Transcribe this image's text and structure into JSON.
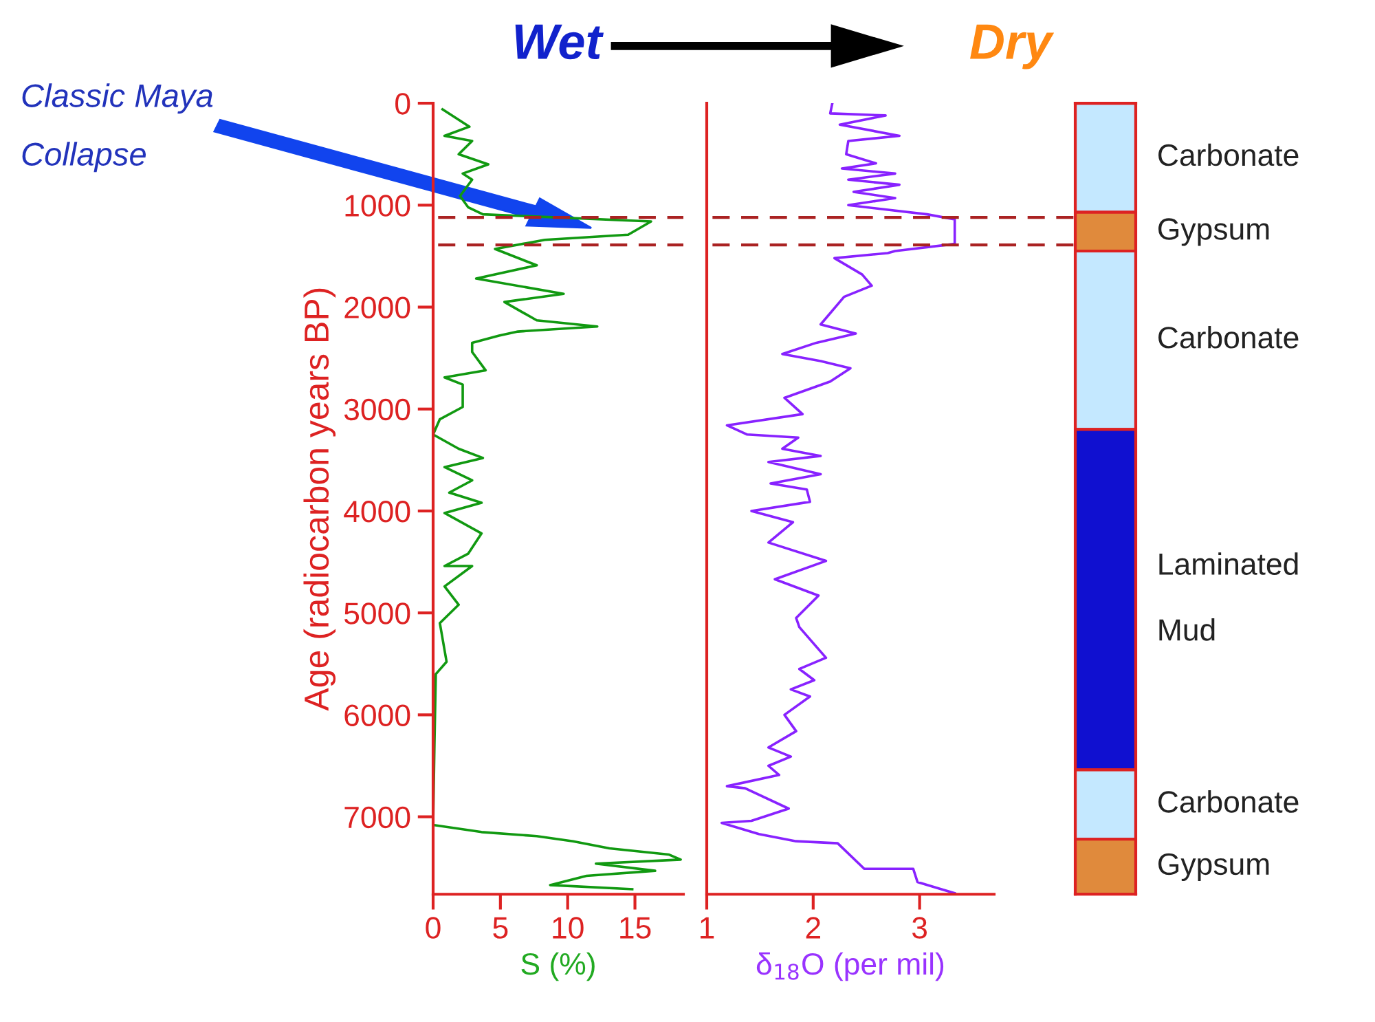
{
  "chart_data": [
    {
      "type": "line",
      "xlabel": "S (%)",
      "ylabel": "Age (radiocarbon years BP)",
      "xlim": [
        0,
        18.6
      ],
      "xticks": [
        0,
        5,
        10,
        15
      ],
      "ylim": [
        7760,
        0
      ],
      "yticks": [
        0,
        1000,
        2000,
        3000,
        4000,
        5000,
        6000,
        7000
      ],
      "series": [
        {
          "color": "#119911",
          "x": [
            0.7,
            2.7,
            0.85,
            2.9,
            1.9,
            4.1,
            2.2,
            2.9,
            2.0,
            2.6,
            3.7,
            16.2,
            14.5,
            8.3,
            4.6,
            7.7,
            3.2,
            9.7,
            5.3,
            7.7,
            12.2,
            6.3,
            4.9,
            2.9,
            2.9,
            3.9,
            0.85,
            2.2,
            2.2,
            0.5,
            0,
            1.9,
            3.7,
            0.85,
            2.9,
            1.2,
            3.6,
            0.85,
            3.6,
            2.6,
            0.85,
            2.9,
            0.85,
            1.9,
            0.5,
            1.0,
            0.2,
            0.1,
            0,
            3.6,
            7.7,
            10.4,
            13.1,
            17.5,
            18.4,
            12.1,
            16.5,
            11.4,
            8.7,
            14.8
          ],
          "values": [
            60,
            230,
            320,
            370,
            500,
            600,
            690,
            750,
            910,
            1020,
            1090,
            1160,
            1290,
            1340,
            1430,
            1590,
            1720,
            1870,
            1950,
            2130,
            2190,
            2240,
            2280,
            2350,
            2440,
            2620,
            2690,
            2760,
            2980,
            3100,
            3250,
            3390,
            3480,
            3570,
            3700,
            3820,
            3920,
            4020,
            4220,
            4420,
            4540,
            4540,
            4740,
            4920,
            5100,
            5480,
            5600,
            6270,
            7080,
            7150,
            7190,
            7240,
            7310,
            7370,
            7420,
            7460,
            7530,
            7580,
            7670,
            7710
          ]
        }
      ],
      "ref_lines": [
        {
          "axis": "y",
          "value": 1120,
          "color": "#aa2222",
          "line_style": "dashed"
        },
        {
          "axis": "y",
          "value": 1390,
          "color": "#aa2222",
          "line_style": "dashed"
        }
      ],
      "annotations": [
        "Classic Maya\nCollapse"
      ],
      "legend": false,
      "grid": false,
      "marker": "none",
      "line_style": "solid"
    },
    {
      "type": "line",
      "xlabel": "δ$_{18}$O (per mil)",
      "xlim": [
        1,
        3.7
      ],
      "xticks": [
        1,
        2,
        3
      ],
      "ylim": [
        7760,
        0
      ],
      "tick_labels": "x",
      "series": [
        {
          "color": "#8822ff",
          "x": [
            2.18,
            2.16,
            2.68,
            2.25,
            2.81,
            2.33,
            2.31,
            2.59,
            2.27,
            2.77,
            2.33,
            2.81,
            2.38,
            2.77,
            2.33,
            3.07,
            3.33,
            3.33,
            2.77,
            2.7,
            2.2,
            2.46,
            2.55,
            2.29,
            2.07,
            2.4,
            2.03,
            1.71,
            2.07,
            2.35,
            2.16,
            1.73,
            1.9,
            1.19,
            1.38,
            1.86,
            1.71,
            2.07,
            1.58,
            2.07,
            1.6,
            1.94,
            1.97,
            1.42,
            1.81,
            1.58,
            2.12,
            1.64,
            2.05,
            1.84,
            1.87,
            2.12,
            1.87,
            2.01,
            1.79,
            1.97,
            1.73,
            1.84,
            1.58,
            1.79,
            1.58,
            1.68,
            1.19,
            1.36,
            1.77,
            1.42,
            1.14,
            1.49,
            1.84,
            2.23,
            2.48,
            2.94,
            2.98,
            3.2,
            3.33
          ],
          "values": [
            0,
            100,
            120,
            210,
            320,
            370,
            500,
            590,
            640,
            690,
            750,
            800,
            870,
            930,
            1000,
            1090,
            1140,
            1380,
            1450,
            1470,
            1520,
            1680,
            1790,
            1900,
            2170,
            2260,
            2350,
            2460,
            2530,
            2600,
            2730,
            2890,
            3050,
            3160,
            3250,
            3280,
            3390,
            3460,
            3520,
            3640,
            3730,
            3790,
            3910,
            4000,
            4110,
            4310,
            4490,
            4670,
            4830,
            5050,
            5140,
            5440,
            5550,
            5660,
            5750,
            5820,
            6000,
            6160,
            6320,
            6410,
            6500,
            6590,
            6700,
            6720,
            6920,
            7040,
            7060,
            7170,
            7240,
            7260,
            7510,
            7510,
            7640,
            7710,
            7750
          ]
        }
      ],
      "ref_lines": [
        {
          "axis": "y",
          "value": 1120,
          "color": "#aa2222",
          "line_style": "dashed"
        },
        {
          "axis": "y",
          "value": 1390,
          "color": "#aa2222",
          "line_style": "dashed"
        }
      ],
      "annotations": [
        "Wet",
        "Dry"
      ],
      "legend": false,
      "grid": false,
      "marker": "none",
      "line_style": "solid"
    },
    {
      "type": "bar",
      "stacked": true,
      "categories": [
        null
      ],
      "ylim": [
        7760,
        0
      ],
      "tick_labels": false,
      "series": [
        {
          "name": "Carbonate",
          "color": "#c4e8ff",
          "values": [
            1070
          ]
        },
        {
          "name": "Gypsum",
          "color": "#e08a3c",
          "values": [
            380
          ]
        },
        {
          "name": "Carbonate",
          "color": "#c4e8ff",
          "values": [
            1750
          ]
        },
        {
          "name": "Laminated\n\nMud",
          "color": "#1010d0",
          "values": [
            3340
          ]
        },
        {
          "name": "Carbonate",
          "color": "#c4e8ff",
          "values": [
            680
          ]
        },
        {
          "name": "Gypsum",
          "color": "#e08a3c",
          "values": [
            540
          ]
        }
      ],
      "legend": false,
      "grid": false
    }
  ]
}
